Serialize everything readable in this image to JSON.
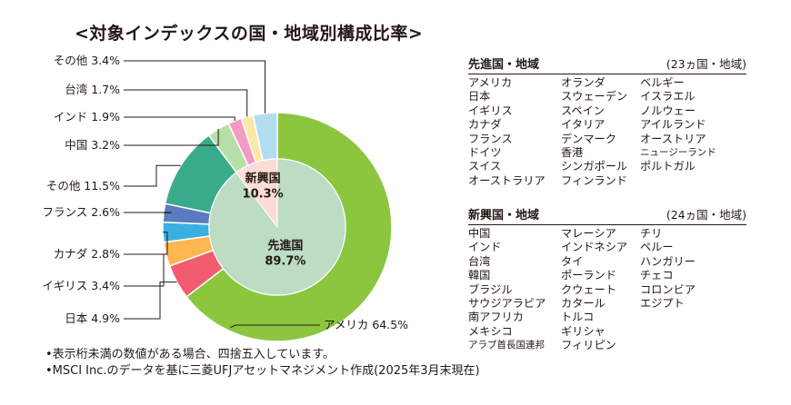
{
  "title": "<対象インデックスの国・地域別構成比率>",
  "chart_data": {
    "type": "pie",
    "outer_ring": [
      {
        "label": "アメリカ",
        "value": 64.5,
        "display": "アメリカ 64.5%",
        "color": "#8cc63f"
      },
      {
        "label": "日本",
        "value": 4.9,
        "display": "日本 4.9%",
        "color": "#f25c6e"
      },
      {
        "label": "イギリス",
        "value": 3.4,
        "display": "イギリス 3.4%",
        "color": "#fdb750"
      },
      {
        "label": "カナダ",
        "value": 2.8,
        "display": "カナダ 2.8%",
        "color": "#3ab0e2"
      },
      {
        "label": "フランス",
        "value": 2.6,
        "display": "フランス 2.6%",
        "color": "#5a7bbf"
      },
      {
        "label": "その他",
        "value": 11.5,
        "display": "その他 11.5%",
        "color": "#3aab8a"
      },
      {
        "label": "中国",
        "value": 3.2,
        "display": "中国 3.2%",
        "color": "#b7e0a8"
      },
      {
        "label": "インド",
        "value": 1.9,
        "display": "インド 1.9%",
        "color": "#f59ac3"
      },
      {
        "label": "台湾",
        "value": 1.7,
        "display": "台湾 1.7%",
        "color": "#fde8a6"
      },
      {
        "label": "その他",
        "value": 3.4,
        "display": "その他 3.4%",
        "color": "#b3def2"
      }
    ],
    "inner_ring": [
      {
        "name": "先進国",
        "value": 89.7,
        "display": "89.7%",
        "color": "#bcdcc4"
      },
      {
        "name": "新興国",
        "value": 10.3,
        "display": "10.3%",
        "color": "#fcdcd6"
      }
    ]
  },
  "developed": {
    "title": "先進国・地域",
    "count": "(23ヵ国・地域)",
    "col1": [
      "アメリカ",
      "日本",
      "イギリス",
      "カナダ",
      "フランス",
      "ドイツ",
      "スイス",
      "オーストラリア"
    ],
    "col2": [
      "オランダ",
      "スウェーデン",
      "スペイン",
      "イタリア",
      "デンマーク",
      "香港",
      "シンガポール",
      "フィンランド"
    ],
    "col3": [
      "ベルギー",
      "イスラエル",
      "ノルウェー",
      "アイルランド",
      "オーストリア",
      "ニュージーランド",
      "ポルトガル"
    ]
  },
  "emerging": {
    "title": "新興国・地域",
    "count": "(24ヵ国・地域)",
    "col1": [
      "中国",
      "インド",
      "台湾",
      "韓国",
      "ブラジル",
      "サウジアラビア",
      "南アフリカ",
      "メキシコ",
      "アラブ首長国連邦"
    ],
    "col2": [
      "マレーシア",
      "インドネシア",
      "タイ",
      "ポーランド",
      "クウェート",
      "カタール",
      "トルコ",
      "ギリシャ",
      "フィリピン"
    ],
    "col3": [
      "チリ",
      "ペルー",
      "ハンガリー",
      "チェコ",
      "コロンビア",
      "エジプト"
    ]
  },
  "notes": [
    "•表示桁未満の数値がある場合、四捨五入しています。",
    "•MSCI Inc.のデータを基に三菱UFJアセットマネジメント作成(2025年3月末現在)"
  ]
}
